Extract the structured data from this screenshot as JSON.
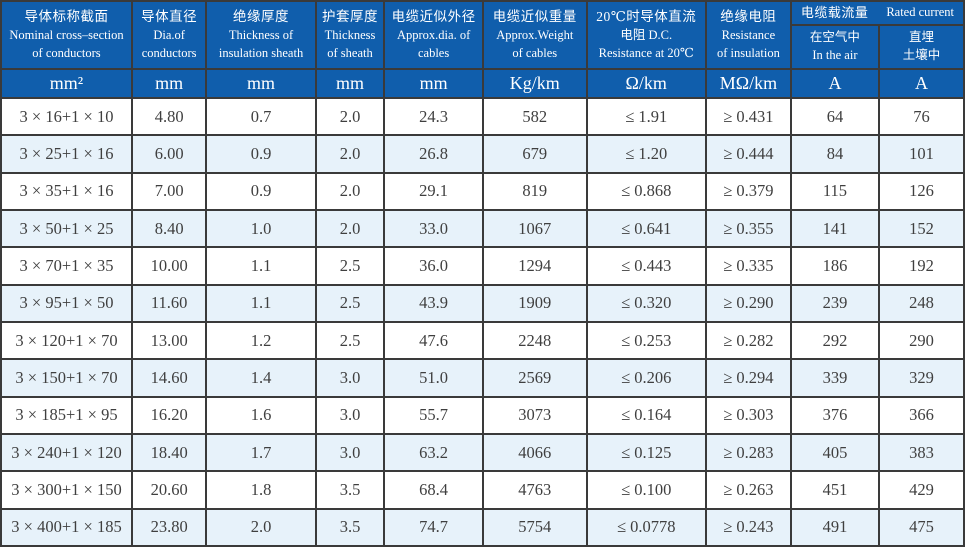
{
  "colors": {
    "header_bg": "#105eac",
    "header_text": "#ffffff",
    "row_bg": "#ffffff",
    "row_alt_bg": "#e7f2fa",
    "border": "#3a3a3a",
    "text": "#3f3f3f"
  },
  "table": {
    "columns": [
      {
        "zh": "导体标称截面",
        "en": "Nominal cross–section\nof conductors"
      },
      {
        "zh": "导体直径",
        "en": "Dia.of\nconductors"
      },
      {
        "zh": "绝缘厚度",
        "en": "Thickness of\ninsulation sheath"
      },
      {
        "zh": "护套厚度",
        "en": "Thickness\nof sheath"
      },
      {
        "zh": "电缆近似外径",
        "en": "Approx.dia. of\ncables"
      },
      {
        "zh": "电缆近似重量",
        "en": "Approx.Weight\nof cables"
      },
      {
        "zh": "20℃时导体直流",
        "en": "电阻 D.C.\nResistance at 20℃"
      },
      {
        "zh": "绝缘电阻",
        "en": "Resistance\nof insulation"
      }
    ],
    "current_group": {
      "zh": "电缆载流量",
      "en": "Rated current",
      "sub_air": "在空气中\nIn the air",
      "sub_buried": "直埋\n土壤中"
    },
    "units": [
      "mm²",
      "mm",
      "mm",
      "mm",
      "mm",
      "Kg/km",
      "Ω/km",
      "MΩ/km",
      "A",
      "A"
    ],
    "rows": [
      [
        "3 × 16+1 × 10",
        "4.80",
        "0.7",
        "2.0",
        "24.3",
        "582",
        "≤ 1.91",
        "≥ 0.431",
        "64",
        "76"
      ],
      [
        "3 × 25+1 × 16",
        "6.00",
        "0.9",
        "2.0",
        "26.8",
        "679",
        "≤ 1.20",
        "≥ 0.444",
        "84",
        "101"
      ],
      [
        "3 × 35+1 × 16",
        "7.00",
        "0.9",
        "2.0",
        "29.1",
        "819",
        "≤ 0.868",
        "≥ 0.379",
        "115",
        "126"
      ],
      [
        "3 × 50+1 × 25",
        "8.40",
        "1.0",
        "2.0",
        "33.0",
        "1067",
        "≤ 0.641",
        "≥ 0.355",
        "141",
        "152"
      ],
      [
        "3 × 70+1 × 35",
        "10.00",
        "1.1",
        "2.5",
        "36.0",
        "1294",
        "≤ 0.443",
        "≥ 0.335",
        "186",
        "192"
      ],
      [
        "3 × 95+1 × 50",
        "11.60",
        "1.1",
        "2.5",
        "43.9",
        "1909",
        "≤ 0.320",
        "≥ 0.290",
        "239",
        "248"
      ],
      [
        "3 × 120+1 × 70",
        "13.00",
        "1.2",
        "2.5",
        "47.6",
        "2248",
        "≤ 0.253",
        "≥ 0.282",
        "292",
        "290"
      ],
      [
        "3 × 150+1 × 70",
        "14.60",
        "1.4",
        "3.0",
        "51.0",
        "2569",
        "≤ 0.206",
        "≥ 0.294",
        "339",
        "329"
      ],
      [
        "3 × 185+1 × 95",
        "16.20",
        "1.6",
        "3.0",
        "55.7",
        "3073",
        "≤ 0.164",
        "≥ 0.303",
        "376",
        "366"
      ],
      [
        "3 × 240+1 × 120",
        "18.40",
        "1.7",
        "3.0",
        "63.2",
        "4066",
        "≤ 0.125",
        "≥ 0.283",
        "405",
        "383"
      ],
      [
        "3 × 300+1 × 150",
        "20.60",
        "1.8",
        "3.5",
        "68.4",
        "4763",
        "≤ 0.100",
        "≥ 0.263",
        "451",
        "429"
      ],
      [
        "3 × 400+1 × 185",
        "23.80",
        "2.0",
        "3.5",
        "74.7",
        "5754",
        "≤ 0.0778",
        "≥ 0.243",
        "491",
        "475"
      ]
    ]
  }
}
